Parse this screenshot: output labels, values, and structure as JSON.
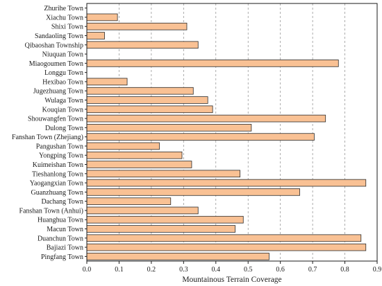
{
  "chart_data": {
    "type": "bar",
    "orientation": "horizontal",
    "categories": [
      "Zhurihe Town",
      "Xiachu Town",
      "Shixi Town",
      "Sandaoling Town",
      "Qibaoshan Township",
      "Niuquan Town",
      "Miaogoumen Town",
      "Longgu Town",
      "Hexibao Town",
      "Jugezhuang Town",
      "Wulaga Town",
      "Kouqian Town",
      "Shouwangfen Town",
      "Dulong Town",
      "Fanshan Town (Zhejiang)",
      "Pangushan Town",
      "Yongping Town",
      "Kuimeishan Town",
      "Tieshanlong Town",
      "Yaogangxian Town",
      "Guanzhuang Town",
      "Dachang Town",
      "Fanshan Town (Anhui)",
      "Huanghua Town",
      "Macun Town",
      "Duanchun Town",
      "Bajiazi Town",
      "Pingfang Town"
    ],
    "values": [
      0.0,
      0.095,
      0.31,
      0.055,
      0.345,
      0.0,
      0.78,
      0.0,
      0.125,
      0.33,
      0.375,
      0.39,
      0.74,
      0.51,
      0.705,
      0.225,
      0.295,
      0.325,
      0.475,
      0.865,
      0.66,
      0.26,
      0.345,
      0.485,
      0.46,
      0.85,
      0.865,
      0.565
    ],
    "xlabel": "Mountainous Terrain Coverage",
    "ylabel": "",
    "title": "",
    "xlim": [
      0.0,
      0.9
    ],
    "xticks": [
      "0.0",
      "0.1",
      "0.2",
      "0.3",
      "0.4",
      "0.5",
      "0.6",
      "0.7",
      "0.8",
      "0.9"
    ],
    "grid": "vertical dashed",
    "colors": {
      "bar_fill": "#f9c194",
      "bar_edge": "#2b2b2b",
      "grid": "#8a8a8a",
      "axis": "#1a1a1a"
    }
  }
}
